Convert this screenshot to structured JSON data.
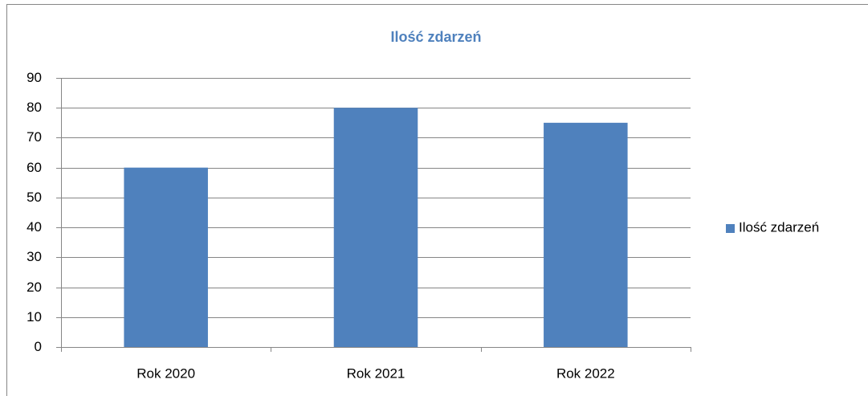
{
  "chart_data": {
    "type": "bar",
    "title": "Ilość zdarzeń",
    "categories": [
      "Rok 2020",
      "Rok 2021",
      "Rok 2022"
    ],
    "series": [
      {
        "name": "Ilość zdarzeń",
        "color": "#4f81bd",
        "values": [
          60,
          80,
          75
        ]
      }
    ],
    "ylim": [
      0,
      90
    ],
    "yticks": [
      0,
      10,
      20,
      30,
      40,
      50,
      60,
      70,
      80,
      90
    ],
    "grid": true,
    "legend": "right"
  }
}
